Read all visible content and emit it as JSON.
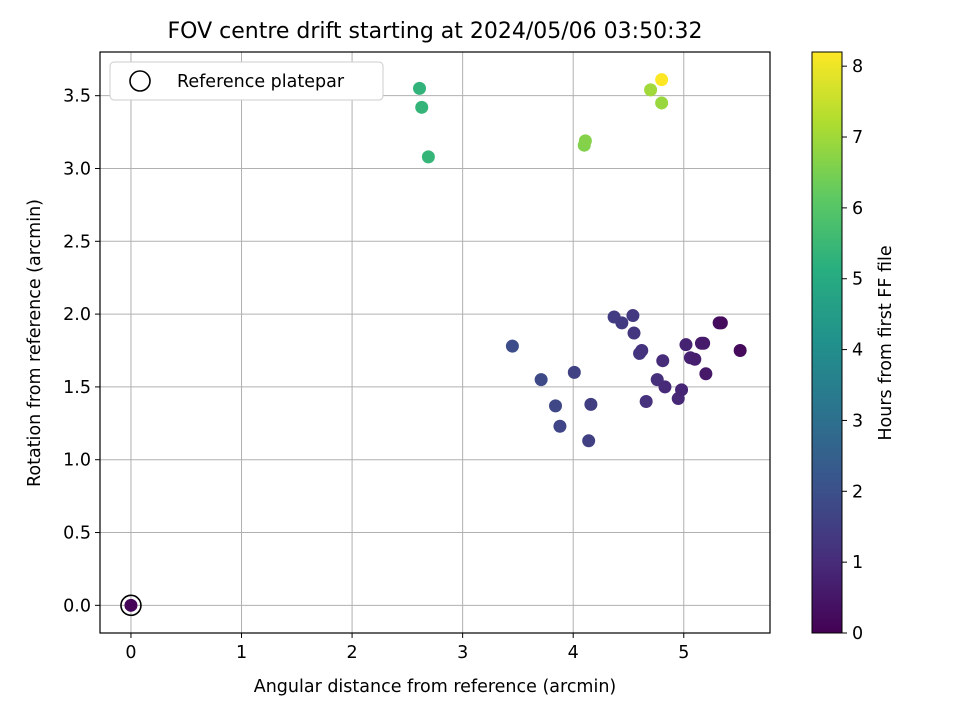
{
  "chart_data": {
    "type": "scatter",
    "title": "FOV centre drift starting at 2024/05/06 03:50:32",
    "xlabel": "Angular distance from reference (arcmin)",
    "ylabel": "Rotation from reference (arcmin)",
    "xlim": [
      -0.28,
      5.78
    ],
    "ylim": [
      -0.19,
      3.8
    ],
    "xticks": [
      0,
      1,
      2,
      3,
      4,
      5
    ],
    "yticks": [
      0.0,
      0.5,
      1.0,
      1.5,
      2.0,
      2.5,
      3.0,
      3.5
    ],
    "grid": true,
    "legend": {
      "placement": "top-left",
      "entries": [
        "Reference platepar"
      ]
    },
    "colorbar": {
      "label": "Hours from first FF file",
      "colormap": "viridis",
      "range": [
        0,
        8.2
      ],
      "ticks": [
        0,
        1,
        2,
        3,
        4,
        5,
        6,
        7,
        8
      ]
    },
    "reference_point": {
      "x": 0,
      "y": 0
    },
    "points": [
      {
        "x": 0.0,
        "y": 0.0,
        "c": 0.1
      },
      {
        "x": 3.45,
        "y": 1.78,
        "c": 1.9
      },
      {
        "x": 3.71,
        "y": 1.55,
        "c": 1.8
      },
      {
        "x": 3.84,
        "y": 1.37,
        "c": 1.75
      },
      {
        "x": 3.88,
        "y": 1.23,
        "c": 1.7
      },
      {
        "x": 4.01,
        "y": 1.6,
        "c": 1.6
      },
      {
        "x": 4.14,
        "y": 1.13,
        "c": 1.55
      },
      {
        "x": 4.16,
        "y": 1.38,
        "c": 1.5
      },
      {
        "x": 4.37,
        "y": 1.98,
        "c": 1.45
      },
      {
        "x": 4.44,
        "y": 1.94,
        "c": 1.4
      },
      {
        "x": 4.54,
        "y": 1.99,
        "c": 1.35
      },
      {
        "x": 4.55,
        "y": 1.87,
        "c": 1.3
      },
      {
        "x": 4.6,
        "y": 1.73,
        "c": 1.25
      },
      {
        "x": 4.62,
        "y": 1.75,
        "c": 1.2
      },
      {
        "x": 4.66,
        "y": 1.4,
        "c": 1.15
      },
      {
        "x": 4.76,
        "y": 1.55,
        "c": 1.1
      },
      {
        "x": 4.81,
        "y": 1.68,
        "c": 1.0
      },
      {
        "x": 4.83,
        "y": 1.5,
        "c": 0.95
      },
      {
        "x": 4.95,
        "y": 1.42,
        "c": 0.9
      },
      {
        "x": 4.98,
        "y": 1.48,
        "c": 0.85
      },
      {
        "x": 5.02,
        "y": 1.79,
        "c": 0.8
      },
      {
        "x": 5.06,
        "y": 1.7,
        "c": 0.75
      },
      {
        "x": 5.1,
        "y": 1.69,
        "c": 0.7
      },
      {
        "x": 5.16,
        "y": 1.8,
        "c": 0.65
      },
      {
        "x": 5.18,
        "y": 1.8,
        "c": 0.6
      },
      {
        "x": 5.2,
        "y": 1.59,
        "c": 0.55
      },
      {
        "x": 5.32,
        "y": 1.94,
        "c": 0.3
      },
      {
        "x": 5.34,
        "y": 1.94,
        "c": 0.25
      },
      {
        "x": 5.51,
        "y": 1.75,
        "c": 0.2
      },
      {
        "x": 2.61,
        "y": 3.55,
        "c": 5.3
      },
      {
        "x": 2.63,
        "y": 3.42,
        "c": 5.35
      },
      {
        "x": 2.69,
        "y": 3.08,
        "c": 5.4
      },
      {
        "x": 4.1,
        "y": 3.16,
        "c": 6.6
      },
      {
        "x": 4.11,
        "y": 3.19,
        "c": 6.65
      },
      {
        "x": 4.7,
        "y": 3.54,
        "c": 7.0
      },
      {
        "x": 4.8,
        "y": 3.45,
        "c": 6.9
      },
      {
        "x": 4.8,
        "y": 3.61,
        "c": 8.2
      }
    ]
  }
}
